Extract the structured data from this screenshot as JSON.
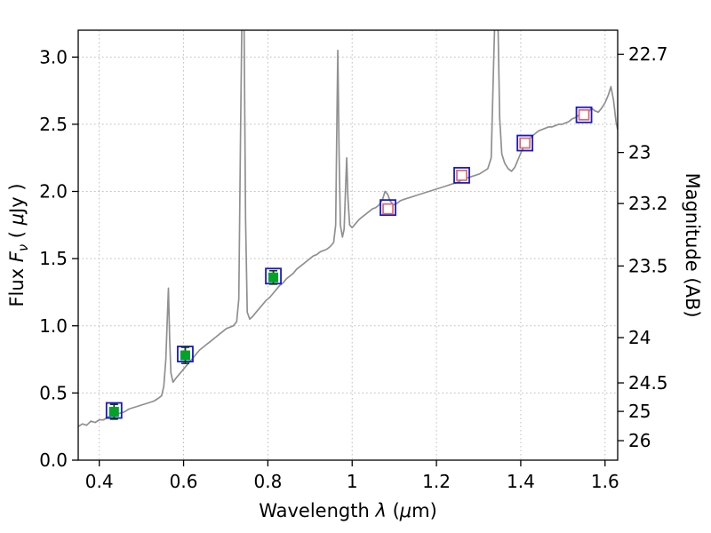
{
  "chart_data": {
    "type": "line+scatter",
    "title": "",
    "xlabel_parts": [
      {
        "text": "Wavelength  ",
        "style": "normal"
      },
      {
        "text": "λ",
        "style": "italic"
      },
      {
        "text": " (",
        "style": "normal"
      },
      {
        "text": "μ",
        "style": "italic"
      },
      {
        "text": "m)",
        "style": "normal"
      }
    ],
    "ylabel_left_parts": [
      {
        "text": "Flux  ",
        "style": "normal"
      },
      {
        "text": "F",
        "style": "italic"
      },
      {
        "text": "ν",
        "style": "italic-sub"
      },
      {
        "text": "  ( ",
        "style": "normal"
      },
      {
        "text": "μ",
        "style": "italic"
      },
      {
        "text": "Jy )",
        "style": "normal"
      }
    ],
    "ylabel_right": "Magnitude (AB)",
    "xlim": [
      0.35,
      1.63
    ],
    "ylim": [
      0.0,
      3.2
    ],
    "grid": "dotted",
    "legend": "none",
    "x_ticks": [
      {
        "label": "0.4",
        "value": 0.4
      },
      {
        "label": "0.6",
        "value": 0.6
      },
      {
        "label": "0.8",
        "value": 0.8
      },
      {
        "label": "1",
        "value": 1.0
      },
      {
        "label": "1.2",
        "value": 1.2
      },
      {
        "label": "1.4",
        "value": 1.4
      },
      {
        "label": "1.6",
        "value": 1.6
      }
    ],
    "y_ticks_left": [
      {
        "label": "0.0",
        "value": 0.0
      },
      {
        "label": "0.5",
        "value": 0.5
      },
      {
        "label": "1.0",
        "value": 1.0
      },
      {
        "label": "1.5",
        "value": 1.5
      },
      {
        "label": "2.0",
        "value": 2.0
      },
      {
        "label": "2.5",
        "value": 2.5
      },
      {
        "label": "3.0",
        "value": 3.0
      }
    ],
    "y_ticks_right": [
      {
        "label": "22.7",
        "flux": 3.02
      },
      {
        "label": "23",
        "flux": 2.29
      },
      {
        "label": "23.2",
        "flux": 1.91
      },
      {
        "label": "23.5",
        "flux": 1.445
      },
      {
        "label": "24",
        "flux": 0.912
      },
      {
        "label": "24.5",
        "flux": 0.575
      },
      {
        "label": "25",
        "flux": 0.363
      },
      {
        "label": "26",
        "flux": 0.145
      }
    ],
    "model_points": [
      {
        "x": 0.435,
        "y": 0.37
      },
      {
        "x": 0.604,
        "y": 0.79
      },
      {
        "x": 0.813,
        "y": 1.37
      },
      {
        "x": 1.085,
        "y": 1.88
      },
      {
        "x": 1.26,
        "y": 2.12
      },
      {
        "x": 1.41,
        "y": 2.36
      },
      {
        "x": 1.55,
        "y": 2.57
      }
    ],
    "observed_green": [
      {
        "x": 0.435,
        "y": 0.36,
        "err": 0.055
      },
      {
        "x": 0.604,
        "y": 0.78,
        "err": 0.06
      },
      {
        "x": 0.813,
        "y": 1.36,
        "err": 0.05
      }
    ],
    "observed_open": [
      {
        "x": 1.085,
        "y": 1.87,
        "err": 0.03
      },
      {
        "x": 1.26,
        "y": 2.12,
        "err": 0.03
      },
      {
        "x": 1.41,
        "y": 2.36,
        "err": 0.03
      },
      {
        "x": 1.55,
        "y": 2.57,
        "err": 0.03
      }
    ],
    "spectrum_points": [
      [
        0.35,
        0.25
      ],
      [
        0.36,
        0.27
      ],
      [
        0.37,
        0.26
      ],
      [
        0.38,
        0.29
      ],
      [
        0.39,
        0.28
      ],
      [
        0.4,
        0.3
      ],
      [
        0.41,
        0.3
      ],
      [
        0.42,
        0.32
      ],
      [
        0.43,
        0.33
      ],
      [
        0.44,
        0.34
      ],
      [
        0.45,
        0.35
      ],
      [
        0.46,
        0.36
      ],
      [
        0.47,
        0.38
      ],
      [
        0.48,
        0.39
      ],
      [
        0.49,
        0.4
      ],
      [
        0.5,
        0.41
      ],
      [
        0.51,
        0.42
      ],
      [
        0.52,
        0.43
      ],
      [
        0.53,
        0.44
      ],
      [
        0.54,
        0.46
      ],
      [
        0.548,
        0.48
      ],
      [
        0.553,
        0.55
      ],
      [
        0.558,
        0.75
      ],
      [
        0.562,
        1.1
      ],
      [
        0.564,
        1.28
      ],
      [
        0.567,
        0.9
      ],
      [
        0.57,
        0.65
      ],
      [
        0.575,
        0.58
      ],
      [
        0.582,
        0.61
      ],
      [
        0.59,
        0.64
      ],
      [
        0.598,
        0.67
      ],
      [
        0.606,
        0.7
      ],
      [
        0.614,
        0.73
      ],
      [
        0.622,
        0.76
      ],
      [
        0.63,
        0.79
      ],
      [
        0.638,
        0.82
      ],
      [
        0.646,
        0.84
      ],
      [
        0.654,
        0.86
      ],
      [
        0.662,
        0.88
      ],
      [
        0.67,
        0.9
      ],
      [
        0.678,
        0.92
      ],
      [
        0.686,
        0.94
      ],
      [
        0.694,
        0.96
      ],
      [
        0.702,
        0.98
      ],
      [
        0.71,
        0.99
      ],
      [
        0.718,
        1.0
      ],
      [
        0.726,
        1.03
      ],
      [
        0.731,
        1.2
      ],
      [
        0.735,
        2.4
      ],
      [
        0.739,
        3.45
      ],
      [
        0.743,
        3.45
      ],
      [
        0.747,
        1.8
      ],
      [
        0.751,
        1.1
      ],
      [
        0.757,
        1.05
      ],
      [
        0.764,
        1.07
      ],
      [
        0.772,
        1.1
      ],
      [
        0.78,
        1.13
      ],
      [
        0.788,
        1.16
      ],
      [
        0.796,
        1.19
      ],
      [
        0.804,
        1.21
      ],
      [
        0.812,
        1.24
      ],
      [
        0.82,
        1.27
      ],
      [
        0.828,
        1.3
      ],
      [
        0.836,
        1.32
      ],
      [
        0.844,
        1.35
      ],
      [
        0.852,
        1.37
      ],
      [
        0.86,
        1.39
      ],
      [
        0.868,
        1.42
      ],
      [
        0.876,
        1.44
      ],
      [
        0.884,
        1.46
      ],
      [
        0.892,
        1.48
      ],
      [
        0.9,
        1.5
      ],
      [
        0.908,
        1.52
      ],
      [
        0.916,
        1.53
      ],
      [
        0.924,
        1.55
      ],
      [
        0.932,
        1.56
      ],
      [
        0.94,
        1.57
      ],
      [
        0.948,
        1.59
      ],
      [
        0.956,
        1.62
      ],
      [
        0.961,
        1.75
      ],
      [
        0.964,
        2.6
      ],
      [
        0.966,
        3.05
      ],
      [
        0.969,
        2.3
      ],
      [
        0.972,
        1.75
      ],
      [
        0.977,
        1.66
      ],
      [
        0.981,
        1.72
      ],
      [
        0.984,
        2.0
      ],
      [
        0.987,
        2.25
      ],
      [
        0.99,
        1.95
      ],
      [
        0.994,
        1.75
      ],
      [
        1.0,
        1.73
      ],
      [
        1.008,
        1.76
      ],
      [
        1.016,
        1.79
      ],
      [
        1.024,
        1.81
      ],
      [
        1.032,
        1.83
      ],
      [
        1.04,
        1.85
      ],
      [
        1.048,
        1.87
      ],
      [
        1.056,
        1.88
      ],
      [
        1.064,
        1.9
      ],
      [
        1.072,
        1.94
      ],
      [
        1.078,
        2.0
      ],
      [
        1.084,
        1.98
      ],
      [
        1.09,
        1.93
      ],
      [
        1.098,
        1.9
      ],
      [
        1.106,
        1.91
      ],
      [
        1.114,
        1.93
      ],
      [
        1.122,
        1.94
      ],
      [
        1.132,
        1.95
      ],
      [
        1.142,
        1.96
      ],
      [
        1.152,
        1.97
      ],
      [
        1.162,
        1.98
      ],
      [
        1.172,
        1.99
      ],
      [
        1.182,
        2.0
      ],
      [
        1.192,
        2.01
      ],
      [
        1.202,
        2.02
      ],
      [
        1.212,
        2.03
      ],
      [
        1.222,
        2.04
      ],
      [
        1.232,
        2.05
      ],
      [
        1.242,
        2.06
      ],
      [
        1.252,
        2.07
      ],
      [
        1.262,
        2.09
      ],
      [
        1.272,
        2.1
      ],
      [
        1.282,
        2.11
      ],
      [
        1.292,
        2.12
      ],
      [
        1.302,
        2.13
      ],
      [
        1.312,
        2.15
      ],
      [
        1.322,
        2.17
      ],
      [
        1.33,
        2.25
      ],
      [
        1.336,
        3.0
      ],
      [
        1.34,
        3.45
      ],
      [
        1.345,
        3.45
      ],
      [
        1.35,
        2.55
      ],
      [
        1.355,
        2.28
      ],
      [
        1.362,
        2.21
      ],
      [
        1.37,
        2.17
      ],
      [
        1.378,
        2.15
      ],
      [
        1.386,
        2.18
      ],
      [
        1.394,
        2.24
      ],
      [
        1.402,
        2.3
      ],
      [
        1.41,
        2.35
      ],
      [
        1.418,
        2.38
      ],
      [
        1.426,
        2.41
      ],
      [
        1.434,
        2.43
      ],
      [
        1.442,
        2.45
      ],
      [
        1.45,
        2.46
      ],
      [
        1.458,
        2.47
      ],
      [
        1.466,
        2.48
      ],
      [
        1.474,
        2.48
      ],
      [
        1.482,
        2.49
      ],
      [
        1.49,
        2.5
      ],
      [
        1.498,
        2.5
      ],
      [
        1.506,
        2.51
      ],
      [
        1.514,
        2.52
      ],
      [
        1.522,
        2.54
      ],
      [
        1.53,
        2.55
      ],
      [
        1.538,
        2.57
      ],
      [
        1.546,
        2.6
      ],
      [
        1.552,
        2.57
      ],
      [
        1.56,
        2.59
      ],
      [
        1.568,
        2.62
      ],
      [
        1.576,
        2.6
      ],
      [
        1.584,
        2.59
      ],
      [
        1.592,
        2.62
      ],
      [
        1.6,
        2.66
      ],
      [
        1.608,
        2.72
      ],
      [
        1.614,
        2.78
      ],
      [
        1.62,
        2.68
      ],
      [
        1.626,
        2.52
      ],
      [
        1.63,
        2.46
      ]
    ],
    "colors": {
      "spectrum": "#909090",
      "grid": "#bbbbbb",
      "model_edge": "#1818cc",
      "green_fill": "#00a228",
      "errorbar": "#143514",
      "open_edge": "#dd6666",
      "open_fill": "#ffffff",
      "frame": "#000000"
    }
  }
}
